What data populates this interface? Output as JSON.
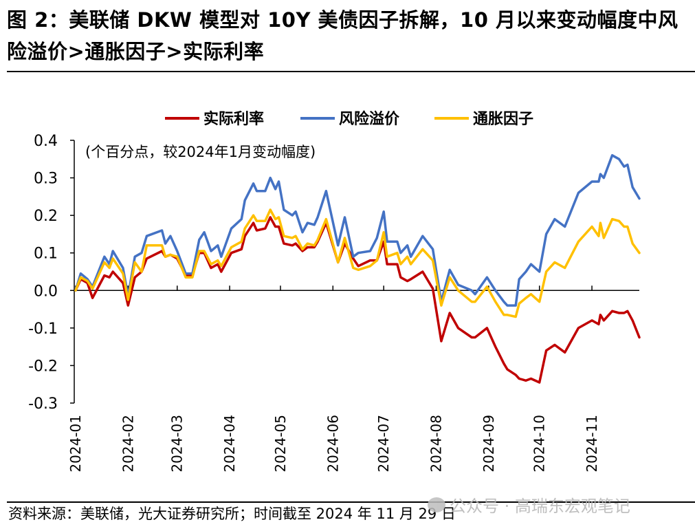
{
  "header": {
    "title": "图 2：美联储 DKW 模型对 10Y 美债因子拆解，10 月以来变动幅度中风险溢价>通胀因子>实际利率"
  },
  "footer": {
    "source": "资料来源：美联储，光大证券研究所；时间截至 2024 年 11 月 29 日",
    "watermark": "公众号 · 高瑞东宏观笔记"
  },
  "chart_data": {
    "type": "line",
    "title": "",
    "annotation": "(个百分点，较2024年1月变动幅度)",
    "xlabel": "",
    "ylabel": "",
    "ylim": [
      -0.3,
      0.4
    ],
    "yticks": [
      "0.4",
      "0.3",
      "0.2",
      "0.1",
      "0.0",
      "-0.1",
      "-0.2",
      "-0.3"
    ],
    "xlim": [
      "2024-01-01",
      "2024-11-29"
    ],
    "xticks": [
      "2024-01",
      "2024-02",
      "2024-03",
      "2024-04",
      "2024-05",
      "2024-06",
      "2024-07",
      "2024-08",
      "2024-09",
      "2024-10",
      "2024-11"
    ],
    "grid": false,
    "legend": "top",
    "x": [
      "2024-01-01",
      "2024-01-04",
      "2024-01-08",
      "2024-01-11",
      "2024-01-18",
      "2024-01-21",
      "2024-01-23",
      "2024-01-29",
      "2024-02-01",
      "2024-02-05",
      "2024-02-09",
      "2024-02-12",
      "2024-02-21",
      "2024-02-23",
      "2024-02-26",
      "2024-03-01",
      "2024-03-06",
      "2024-03-10",
      "2024-03-14",
      "2024-03-17",
      "2024-03-21",
      "2024-03-25",
      "2024-03-27",
      "2024-04-02",
      "2024-04-08",
      "2024-04-10",
      "2024-04-15",
      "2024-04-17",
      "2024-04-22",
      "2024-04-25",
      "2024-04-28",
      "2024-04-30",
      "2024-05-03",
      "2024-05-08",
      "2024-05-10",
      "2024-05-14",
      "2024-05-17",
      "2024-05-21",
      "2024-05-23",
      "2024-05-28",
      "2024-06-04",
      "2024-06-08",
      "2024-06-13",
      "2024-06-16",
      "2024-06-23",
      "2024-06-27",
      "2024-07-01",
      "2024-07-03",
      "2024-07-09",
      "2024-07-11",
      "2024-07-15",
      "2024-07-17",
      "2024-07-24",
      "2024-07-30",
      "2024-08-04",
      "2024-08-09",
      "2024-08-14",
      "2024-08-22",
      "2024-08-24",
      "2024-08-31",
      "2024-09-05",
      "2024-09-10",
      "2024-09-12",
      "2024-09-17",
      "2024-09-19",
      "2024-09-23",
      "2024-09-26",
      "2024-10-01",
      "2024-10-05",
      "2024-10-10",
      "2024-10-16",
      "2024-10-24",
      "2024-11-01",
      "2024-11-05",
      "2024-11-06",
      "2024-11-08",
      "2024-11-13",
      "2024-11-17",
      "2024-11-20",
      "2024-11-22",
      "2024-11-25",
      "2024-11-29"
    ],
    "series": [
      {
        "name": "实际利率",
        "color": "#C00000",
        "values": [
          0,
          0.03,
          0.02,
          -0.02,
          0.04,
          0.035,
          0.05,
          0.02,
          -0.04,
          0.035,
          0.05,
          0.085,
          0.105,
          0.09,
          0.095,
          0.085,
          0.04,
          0.04,
          0.1,
          0.1,
          0.06,
          0.07,
          0.05,
          0.1,
          0.11,
          0.145,
          0.18,
          0.16,
          0.165,
          0.195,
          0.17,
          0.17,
          0.125,
          0.12,
          0.125,
          0.105,
          0.115,
          0.115,
          0.13,
          0.18,
          0.075,
          0.125,
          0.085,
          0.065,
          0.08,
          0.08,
          0.13,
          0.07,
          0.07,
          0.035,
          0.025,
          0.03,
          0.05,
          0.005,
          -0.135,
          -0.06,
          -0.1,
          -0.125,
          -0.125,
          -0.1,
          -0.15,
          -0.195,
          -0.21,
          -0.225,
          -0.235,
          -0.24,
          -0.235,
          -0.245,
          -0.16,
          -0.145,
          -0.165,
          -0.1,
          -0.08,
          -0.09,
          -0.065,
          -0.08,
          -0.055,
          -0.06,
          -0.06,
          -0.055,
          -0.08,
          -0.125
        ]
      },
      {
        "name": "风险溢价",
        "color": "#4472C4",
        "values": [
          0,
          0.045,
          0.03,
          0.01,
          0.09,
          0.07,
          0.105,
          0.06,
          -0.015,
          0.09,
          0.1,
          0.145,
          0.16,
          0.125,
          0.145,
          0.105,
          0.045,
          0.045,
          0.135,
          0.155,
          0.105,
          0.12,
          0.09,
          0.165,
          0.19,
          0.24,
          0.285,
          0.265,
          0.265,
          0.3,
          0.27,
          0.29,
          0.215,
          0.2,
          0.21,
          0.155,
          0.18,
          0.175,
          0.195,
          0.265,
          0.12,
          0.195,
          0.09,
          0.1,
          0.105,
          0.14,
          0.21,
          0.13,
          0.13,
          0.1,
          0.12,
          0.09,
          0.145,
          0.11,
          -0.03,
          0.055,
          0.015,
          0,
          -0.01,
          0.035,
          0,
          -0.03,
          -0.04,
          -0.04,
          0.03,
          0.05,
          0.07,
          0.05,
          0.15,
          0.19,
          0.17,
          0.26,
          0.29,
          0.29,
          0.31,
          0.3,
          0.36,
          0.35,
          0.33,
          0.335,
          0.275,
          0.245
        ]
      },
      {
        "name": "通胀因子",
        "color": "#FFC000",
        "values": [
          0,
          0.035,
          0.025,
          0.005,
          0.075,
          0.06,
          0.085,
          0.045,
          -0.025,
          0.075,
          0.05,
          0.12,
          0.12,
          0.09,
          0.095,
          0.09,
          0.035,
          0.035,
          0.105,
          0.105,
          0.07,
          0.08,
          0.065,
          0.115,
          0.13,
          0.165,
          0.2,
          0.185,
          0.185,
          0.215,
          0.19,
          0.195,
          0.145,
          0.14,
          0.145,
          0.11,
          0.125,
          0.12,
          0.135,
          0.19,
          0.075,
          0.14,
          0.06,
          0.055,
          0.065,
          0.08,
          0.155,
          0.09,
          0.1,
          0.07,
          0.09,
          0.07,
          0.11,
          0.08,
          -0.04,
          0.035,
          0,
          -0.03,
          -0.03,
          0.01,
          -0.03,
          -0.065,
          -0.065,
          -0.07,
          -0.035,
          -0.02,
          -0.01,
          -0.03,
          0.05,
          0.075,
          0.06,
          0.13,
          0.17,
          0.145,
          0.18,
          0.14,
          0.19,
          0.185,
          0.17,
          0.17,
          0.125,
          0.1
        ]
      }
    ]
  }
}
